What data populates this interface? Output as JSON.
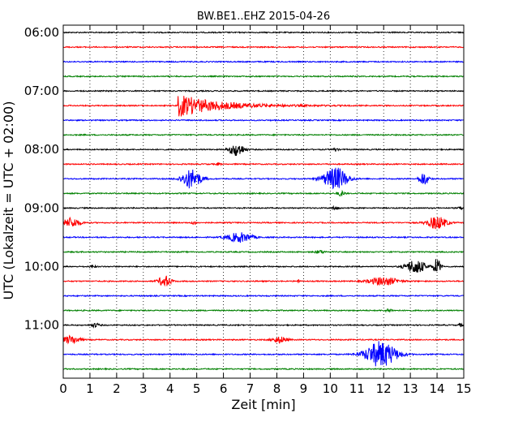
{
  "chart_data": {
    "type": "line",
    "title": "BW.BE1..EHZ 2015-04-26",
    "xlabel": "Zeit  [min]",
    "ylabel": "UTC (Lokalzeit = UTC + 02:00)",
    "xlim": [
      0,
      15
    ],
    "x_ticks": [
      "0",
      "1",
      "2",
      "3",
      "4",
      "5",
      "6",
      "7",
      "8",
      "9",
      "10",
      "11",
      "12",
      "13",
      "14",
      "15"
    ],
    "y_ticks": [
      {
        "label": "06:00",
        "row": 0
      },
      {
        "label": "07:00",
        "row": 4
      },
      {
        "label": "08:00",
        "row": 8
      },
      {
        "label": "09:00",
        "row": 12
      },
      {
        "label": "10:00",
        "row": 16
      },
      {
        "label": "11:00",
        "row": 20
      }
    ],
    "trace_colors": [
      "#000000",
      "#ff0000",
      "#0000ff",
      "#008000"
    ],
    "grid": "vertical dotted",
    "traces": [
      {
        "start": "06:00",
        "events": []
      },
      {
        "start": "06:15",
        "events": []
      },
      {
        "start": "06:30",
        "events": []
      },
      {
        "start": "06:45",
        "events": []
      },
      {
        "start": "07:00",
        "events": []
      },
      {
        "start": "07:15",
        "events": [
          {
            "t": 4.3,
            "amp": 14,
            "dur": 6.5
          }
        ]
      },
      {
        "start": "07:30",
        "events": []
      },
      {
        "start": "07:45",
        "events": []
      },
      {
        "start": "08:00",
        "events": [
          {
            "t": 6.5,
            "amp": 8,
            "dur": 0.6
          },
          {
            "t": 10.2,
            "amp": 2,
            "dur": 0.2
          }
        ]
      },
      {
        "start": "08:15",
        "events": [
          {
            "t": 5.8,
            "amp": 1.5,
            "dur": 0.2
          }
        ]
      },
      {
        "start": "08:30",
        "events": [
          {
            "t": 4.8,
            "amp": 12,
            "dur": 0.8
          },
          {
            "t": 10.2,
            "amp": 14,
            "dur": 1.0
          },
          {
            "t": 13.5,
            "amp": 8,
            "dur": 0.4
          }
        ]
      },
      {
        "start": "08:45",
        "events": [
          {
            "t": 10.4,
            "amp": 3,
            "dur": 0.3
          }
        ]
      },
      {
        "start": "09:00",
        "events": [
          {
            "t": 10.2,
            "amp": 2,
            "dur": 0.3
          },
          {
            "t": 14.9,
            "amp": 2,
            "dur": 0.2
          }
        ]
      },
      {
        "start": "09:15",
        "events": [
          {
            "t": 0.3,
            "amp": 6,
            "dur": 0.7
          },
          {
            "t": 4.9,
            "amp": 2,
            "dur": 0.2
          },
          {
            "t": 14.0,
            "amp": 8,
            "dur": 0.8
          }
        ]
      },
      {
        "start": "09:30",
        "events": [
          {
            "t": 6.6,
            "amp": 6,
            "dur": 1.0
          }
        ]
      },
      {
        "start": "09:45",
        "events": [
          {
            "t": 9.6,
            "amp": 2,
            "dur": 0.4
          }
        ]
      },
      {
        "start": "10:00",
        "events": [
          {
            "t": 1.1,
            "amp": 2,
            "dur": 0.2
          },
          {
            "t": 13.2,
            "amp": 9,
            "dur": 0.8
          },
          {
            "t": 14.0,
            "amp": 10,
            "dur": 0.3
          }
        ]
      },
      {
        "start": "10:15",
        "events": [
          {
            "t": 3.8,
            "amp": 7,
            "dur": 0.5
          },
          {
            "t": 8.8,
            "amp": 3,
            "dur": 0.1
          },
          {
            "t": 12.0,
            "amp": 5,
            "dur": 1.2
          }
        ]
      },
      {
        "start": "10:30",
        "events": []
      },
      {
        "start": "10:45",
        "events": [
          {
            "t": 12.2,
            "amp": 2,
            "dur": 0.3
          }
        ]
      },
      {
        "start": "11:00",
        "events": [
          {
            "t": 1.2,
            "amp": 2.5,
            "dur": 0.3
          },
          {
            "t": 14.9,
            "amp": 2,
            "dur": 0.2
          }
        ]
      },
      {
        "start": "11:15",
        "events": [
          {
            "t": 0.3,
            "amp": 5,
            "dur": 0.7
          },
          {
            "t": 8.1,
            "amp": 4,
            "dur": 0.6
          }
        ]
      },
      {
        "start": "11:30",
        "events": [
          {
            "t": 11.9,
            "amp": 16,
            "dur": 1.3
          }
        ]
      },
      {
        "start": "11:45",
        "events": []
      }
    ]
  }
}
